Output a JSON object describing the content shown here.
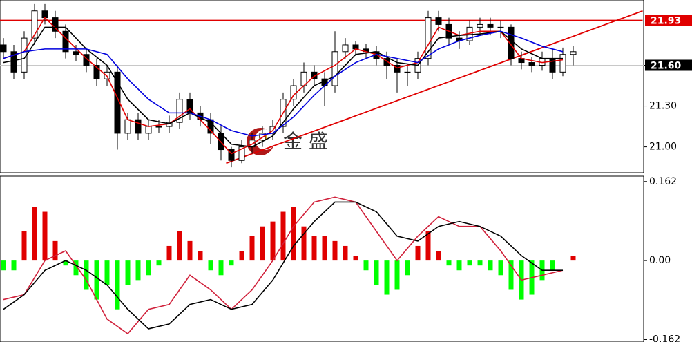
{
  "chart_data": [
    {
      "type": "candlestick",
      "open": [
        21.75,
        21.7,
        21.55,
        21.8,
        22.0,
        21.95,
        21.85,
        21.7,
        21.68,
        21.6,
        21.5,
        21.55,
        21.1,
        21.2,
        21.1,
        21.15,
        21.15,
        21.18,
        21.35,
        21.25,
        21.2,
        21.1,
        20.98,
        20.9,
        21.0,
        21.05,
        21.1,
        21.15,
        21.35,
        21.45,
        21.55,
        21.5,
        21.45,
        21.7,
        21.75,
        21.72,
        21.7,
        21.65,
        21.6,
        21.55,
        21.55,
        21.65,
        21.95,
        21.9,
        21.8,
        21.78,
        21.88,
        21.9,
        21.88,
        21.88,
        21.65,
        21.62,
        21.6,
        21.65,
        21.55,
        21.68
      ],
      "high": [
        21.8,
        21.75,
        21.85,
        22.05,
        22.05,
        22.0,
        21.9,
        21.75,
        21.73,
        21.65,
        21.6,
        21.6,
        21.25,
        21.25,
        21.2,
        21.2,
        21.23,
        21.4,
        21.4,
        21.3,
        21.25,
        21.15,
        21.0,
        21.05,
        21.1,
        21.15,
        21.2,
        21.4,
        21.5,
        21.62,
        21.6,
        21.55,
        21.85,
        21.8,
        21.78,
        21.76,
        21.74,
        21.7,
        21.65,
        21.6,
        21.7,
        22.0,
        22.0,
        21.95,
        21.85,
        21.93,
        21.95,
        21.95,
        21.93,
        21.9,
        21.7,
        21.66,
        21.7,
        21.72,
        21.73,
        21.74
      ],
      "low": [
        21.65,
        21.5,
        21.5,
        21.75,
        21.9,
        21.8,
        21.65,
        21.63,
        21.55,
        21.45,
        21.45,
        20.98,
        21.05,
        21.05,
        21.05,
        21.1,
        21.1,
        21.13,
        21.2,
        21.15,
        21.02,
        20.9,
        20.85,
        20.88,
        20.95,
        21.0,
        21.05,
        21.1,
        21.3,
        21.4,
        21.45,
        21.3,
        21.4,
        21.65,
        21.67,
        21.65,
        21.6,
        21.5,
        21.4,
        21.45,
        21.5,
        21.6,
        21.85,
        21.75,
        21.72,
        21.75,
        21.83,
        21.82,
        21.8,
        21.6,
        21.57,
        21.55,
        21.56,
        21.5,
        21.52,
        21.6
      ],
      "close": [
        21.7,
        21.55,
        21.8,
        22.0,
        21.95,
        21.85,
        21.7,
        21.68,
        21.6,
        21.5,
        21.55,
        21.1,
        21.2,
        21.1,
        21.15,
        21.15,
        21.18,
        21.35,
        21.25,
        21.2,
        21.1,
        20.98,
        20.9,
        21.0,
        21.05,
        21.1,
        21.15,
        21.35,
        21.45,
        21.55,
        21.5,
        21.45,
        21.7,
        21.75,
        21.72,
        21.7,
        21.65,
        21.6,
        21.55,
        21.55,
        21.65,
        21.95,
        21.9,
        21.8,
        21.78,
        21.88,
        21.9,
        21.88,
        21.88,
        21.65,
        21.62,
        21.6,
        21.65,
        21.55,
        21.68,
        21.7
      ],
      "up_color": "#ffffff",
      "down_color": "#000000",
      "line_x": [
        0,
        2,
        4,
        6,
        8,
        10,
        12,
        14,
        16,
        18,
        20,
        22,
        24,
        26,
        28,
        30,
        32,
        34,
        36,
        38,
        40,
        42,
        44,
        46,
        48,
        50,
        52,
        54
      ],
      "series": [
        {
          "color": "#e00000",
          "values": [
            21.65,
            21.7,
            21.95,
            21.8,
            21.65,
            21.52,
            21.2,
            21.15,
            21.17,
            21.28,
            21.12,
            20.95,
            21.02,
            21.12,
            21.38,
            21.52,
            21.6,
            21.72,
            21.68,
            21.58,
            21.62,
            21.88,
            21.82,
            21.85,
            21.85,
            21.65,
            21.62,
            21.64
          ]
        },
        {
          "color": "#000000",
          "values": [
            21.62,
            21.65,
            21.88,
            21.88,
            21.72,
            21.6,
            21.35,
            21.2,
            21.17,
            21.25,
            21.18,
            21.02,
            21.0,
            21.08,
            21.28,
            21.45,
            21.52,
            21.68,
            21.7,
            21.62,
            21.6,
            21.8,
            21.82,
            21.83,
            21.85,
            21.72,
            21.65,
            21.65
          ]
        },
        {
          "color": "#0000dd",
          "values": [
            21.65,
            21.7,
            21.72,
            21.72,
            21.72,
            21.68,
            21.5,
            21.35,
            21.25,
            21.25,
            21.2,
            21.12,
            21.08,
            21.1,
            21.22,
            21.38,
            21.52,
            21.62,
            21.68,
            21.65,
            21.62,
            21.72,
            21.78,
            21.82,
            21.85,
            21.8,
            21.74,
            21.7
          ]
        }
      ],
      "trend_lines": [
        {
          "color": "#e00000",
          "x": [
            -0.4,
            61.7
          ],
          "values": [
            21.93,
            21.93
          ]
        },
        {
          "color": "#e00000",
          "x": [
            21.5,
            61.7
          ],
          "values": [
            20.88,
            22.0
          ]
        }
      ],
      "price_labels": [
        {
          "value": 21.93,
          "label": "21.93",
          "color": "#e00000"
        },
        {
          "value": 21.6,
          "label": "21.60",
          "color": "#000000",
          "line_color": "#c8c8c8"
        }
      ],
      "watermark": "金 盛",
      "ylim": [
        20.81,
        22.08
      ],
      "yticks": [
        {
          "value": 21,
          "label": "21.00"
        },
        {
          "value": 21.3,
          "label": "21.30"
        },
        {
          "value": 21.6,
          "label": "21.60"
        }
      ]
    },
    {
      "type": "macd",
      "values": [
        -0.02,
        -0.02,
        0.06,
        0.11,
        0.1,
        0.04,
        -0.01,
        -0.03,
        -0.06,
        -0.08,
        -0.05,
        -0.1,
        -0.05,
        -0.04,
        -0.03,
        -0.01,
        0.03,
        0.06,
        0.04,
        0.02,
        -0.02,
        -0.03,
        -0.01,
        0.02,
        0.05,
        0.07,
        0.08,
        0.1,
        0.11,
        0.07,
        0.05,
        0.05,
        0.04,
        0.03,
        0.01,
        -0.02,
        -0.05,
        -0.07,
        -0.06,
        -0.03,
        0.03,
        0.06,
        0.02,
        -0.01,
        -0.02,
        -0.01,
        -0.01,
        -0.02,
        -0.03,
        -0.06,
        -0.08,
        -0.07,
        -0.04,
        -0.02,
        0.0,
        0.01
      ],
      "up_color": "#e00000",
      "down_color": "#00ff00",
      "line_x": [
        0,
        2,
        4,
        6,
        8,
        10,
        12,
        14,
        16,
        18,
        20,
        22,
        24,
        26,
        28,
        30,
        32,
        34,
        36,
        38,
        40,
        42,
        44,
        46,
        48,
        50,
        52,
        54
      ],
      "series": [
        {
          "color": "#d0203a",
          "values": [
            -0.08,
            -0.07,
            0.0,
            0.02,
            -0.04,
            -0.12,
            -0.15,
            -0.1,
            -0.09,
            -0.03,
            -0.06,
            -0.1,
            -0.06,
            0.0,
            0.07,
            0.12,
            0.13,
            0.12,
            0.06,
            0.0,
            0.05,
            0.09,
            0.07,
            0.07,
            0.02,
            -0.04,
            -0.03,
            -0.02
          ]
        },
        {
          "color": "#000000",
          "values": [
            -0.1,
            -0.07,
            -0.02,
            0.0,
            -0.02,
            -0.05,
            -0.1,
            -0.14,
            -0.13,
            -0.09,
            -0.08,
            -0.1,
            -0.09,
            -0.04,
            0.03,
            0.08,
            0.12,
            0.12,
            0.1,
            0.05,
            0.04,
            0.07,
            0.08,
            0.07,
            0.05,
            0.01,
            -0.02,
            -0.02
          ]
        }
      ],
      "ylim": [
        -0.167,
        0.173
      ],
      "yticks": [
        0.162,
        {
          "value": 0,
          "label": "0.00"
        },
        -0.162
      ]
    }
  ]
}
